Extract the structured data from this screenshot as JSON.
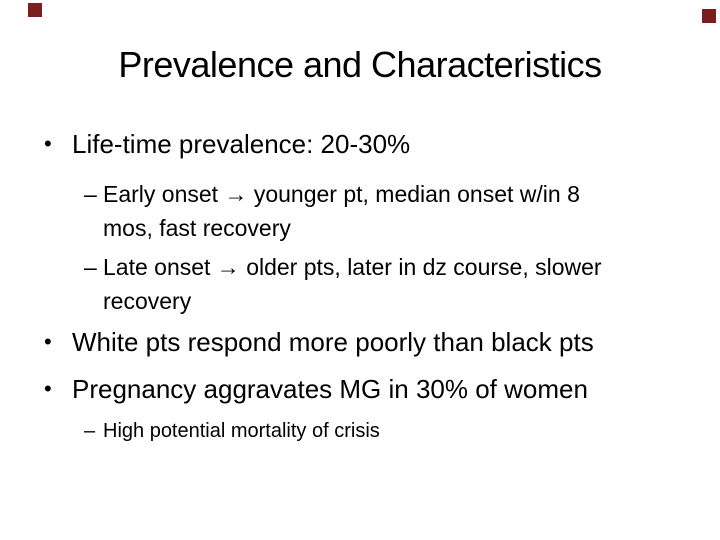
{
  "slide": {
    "title": "Prevalence and Characteristics",
    "decor": {
      "corner_square_color": "#7b1e1e"
    },
    "bullets": [
      {
        "level": 1,
        "marker": "•",
        "lines": [
          "Life-time prevalence: 20-30%"
        ]
      },
      {
        "level": 2,
        "marker": "–",
        "lines": [
          "Early onset → younger pt, median onset w/in 8",
          "mos, fast recovery"
        ]
      },
      {
        "level": 2,
        "marker": "–",
        "lines": [
          "Late onset → older pts, later in dz course, slower",
          "recovery"
        ]
      },
      {
        "level": 1,
        "marker": "•",
        "lines": [
          "White pts respond more poorly than black pts"
        ]
      },
      {
        "level": 1,
        "marker": "•",
        "lines": [
          "Pregnancy aggravates MG in 30% of women"
        ]
      },
      {
        "level": 2,
        "marker": "–",
        "lines": [
          "High potential mortality of crisis"
        ]
      }
    ]
  }
}
